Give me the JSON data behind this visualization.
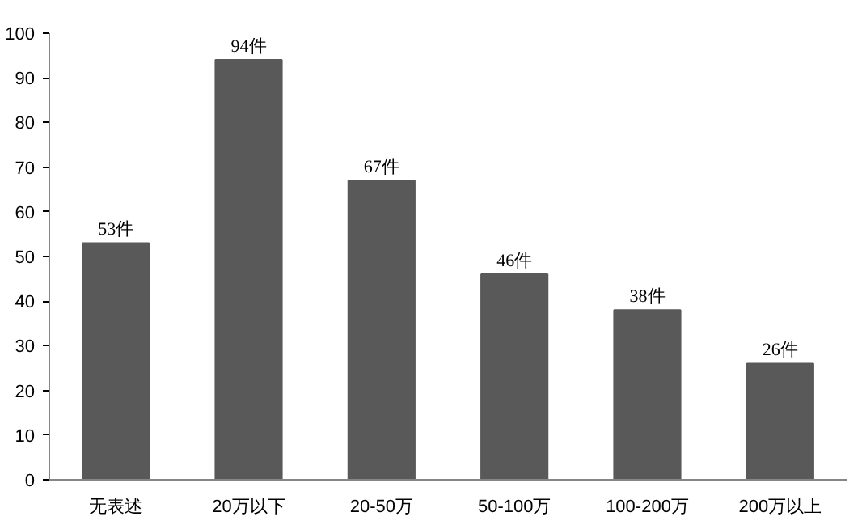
{
  "chart_data": {
    "type": "bar",
    "categories": [
      "无表述",
      "20万以下",
      "20-50万",
      "50-100万",
      "100-200万",
      "200万以上"
    ],
    "values": [
      53,
      94,
      67,
      46,
      38,
      26
    ],
    "value_labels": [
      "53件",
      "94件",
      "67件",
      "46件",
      "38件",
      "26件"
    ],
    "color": "#595959",
    "ylim": [
      0,
      100
    ],
    "yticks": [
      0,
      10,
      20,
      30,
      40,
      50,
      60,
      70,
      80,
      90,
      100
    ],
    "grid": false
  }
}
